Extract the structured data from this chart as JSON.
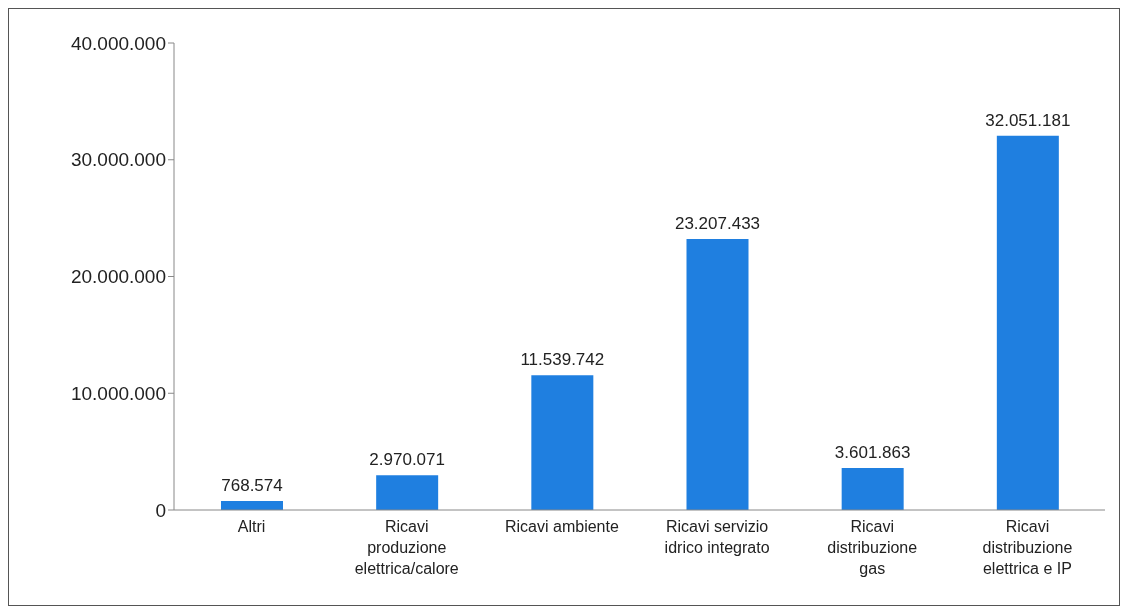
{
  "chart_data": {
    "type": "bar",
    "categories": [
      "Altri",
      "Ricavi produzione elettrica/calore",
      "Ricavi ambiente",
      "Ricavi servizio idrico integrato",
      "Ricavi distribuzione gas",
      "Ricavi distribuzione elettrica e IP"
    ],
    "values": [
      768574,
      2970071,
      11539742,
      23207433,
      3601863,
      32051181
    ],
    "value_labels": [
      "768.574",
      "2.970.071",
      "11.539.742",
      "23.207.433",
      "3.601.863",
      "32.051.181"
    ],
    "color": "#1f7fe0",
    "ylim": [
      0,
      40000000
    ],
    "yticks": [
      0,
      {
        "value": 10000000,
        "label": "10.000.000"
      },
      {
        "value": 20000000,
        "label": "20.000.000"
      },
      {
        "value": 30000000,
        "label": "30.000.000"
      },
      {
        "value": 40000000,
        "label": "40.000.000"
      }
    ],
    "grid": false,
    "legend": false
  }
}
